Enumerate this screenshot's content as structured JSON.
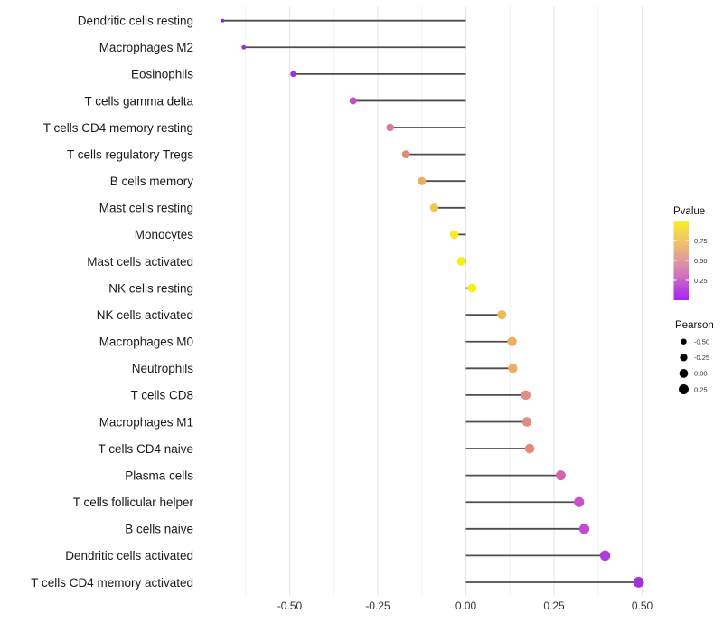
{
  "chart_data": {
    "type": "scatter",
    "subtype": "lollipop",
    "title": "",
    "xlabel": "",
    "ylabel": "",
    "xlim": [
      -0.756,
      0.549
    ],
    "baseline_x": 0,
    "xticks": {
      "values": [
        -0.5,
        -0.25,
        0,
        0.25,
        0.5
      ],
      "labels": [
        "-0.50",
        "-0.25",
        "0.00",
        "0.25",
        "0.50"
      ]
    },
    "minor_gridlines": [
      -0.625,
      -0.375,
      -0.125,
      0.125,
      0.375
    ],
    "grid": {
      "major_color": "#e6e6e6",
      "minor_color": "#f2f2f2",
      "horizontal": "off"
    },
    "stem_color": "#4d4d4d",
    "axis_text_color": "#1a1a1a",
    "tick_text_color": "#333333",
    "points": [
      {
        "label": "Dendritic cells resting",
        "pearson": -0.69,
        "color": "#8e2be0"
      },
      {
        "label": "Macrophages M2",
        "pearson": -0.63,
        "color": "#9530db"
      },
      {
        "label": "Eosinophils",
        "pearson": -0.49,
        "color": "#9b34d8"
      },
      {
        "label": "T cells gamma delta",
        "pearson": -0.32,
        "color": "#c14ac9"
      },
      {
        "label": "T cells CD4 memory resting",
        "pearson": -0.215,
        "color": "#da7b94"
      },
      {
        "label": "T cells regulatory  Tregs",
        "pearson": -0.17,
        "color": "#df8b79"
      },
      {
        "label": "B cells memory",
        "pearson": -0.125,
        "color": "#ebac5e"
      },
      {
        "label": "Mast cells resting",
        "pearson": -0.09,
        "color": "#efc74d"
      },
      {
        "label": "Monocytes",
        "pearson": -0.033,
        "color": "#f6ea1e"
      },
      {
        "label": "Mast cells activated",
        "pearson": -0.013,
        "color": "#f9f00f"
      },
      {
        "label": "NK cells resting",
        "pearson": 0.018,
        "color": "#f8ed17"
      },
      {
        "label": "NK cells activated",
        "pearson": 0.102,
        "color": "#ebbe55"
      },
      {
        "label": "Macrophages M0",
        "pearson": 0.131,
        "color": "#edae63"
      },
      {
        "label": "Neutrophils",
        "pearson": 0.133,
        "color": "#edae63"
      },
      {
        "label": "T cells CD8",
        "pearson": 0.17,
        "color": "#df8e7f"
      },
      {
        "label": "Macrophages M1",
        "pearson": 0.173,
        "color": "#df8d7e"
      },
      {
        "label": "T cells CD4 naive",
        "pearson": 0.181,
        "color": "#e28b7a"
      },
      {
        "label": "Plasma cells",
        "pearson": 0.269,
        "color": "#d066b2"
      },
      {
        "label": "T cells follicular helper",
        "pearson": 0.321,
        "color": "#c950c9"
      },
      {
        "label": "B cells naive",
        "pearson": 0.336,
        "color": "#c44bcc"
      },
      {
        "label": "Dendritic cells activated",
        "pearson": 0.395,
        "color": "#b13cdc"
      },
      {
        "label": "T cells CD4 memory activated",
        "pearson": 0.49,
        "color": "#a232db"
      }
    ],
    "legends": {
      "pvalue": {
        "title": "Pvalue",
        "range": [
          0,
          1
        ],
        "tick_values": [
          0.75,
          0.5,
          0.25
        ],
        "tick_labels": [
          "0.75",
          "0.50",
          "0.25"
        ],
        "gradient_top_to_bottom": [
          "#faf021",
          "#f5d553",
          "#f0c06d",
          "#e6a68d",
          "#da8aa7",
          "#cd6cc3",
          "#ba44e1",
          "#a724f0"
        ]
      },
      "pearson": {
        "title": "Pearson",
        "dot_color": "#000000",
        "items": [
          {
            "label": "-0.50",
            "value": -0.5
          },
          {
            "label": "-0.25",
            "value": -0.25
          },
          {
            "label": "0.00",
            "value": 0
          },
          {
            "label": "0.25",
            "value": 0.25
          }
        ]
      }
    }
  }
}
